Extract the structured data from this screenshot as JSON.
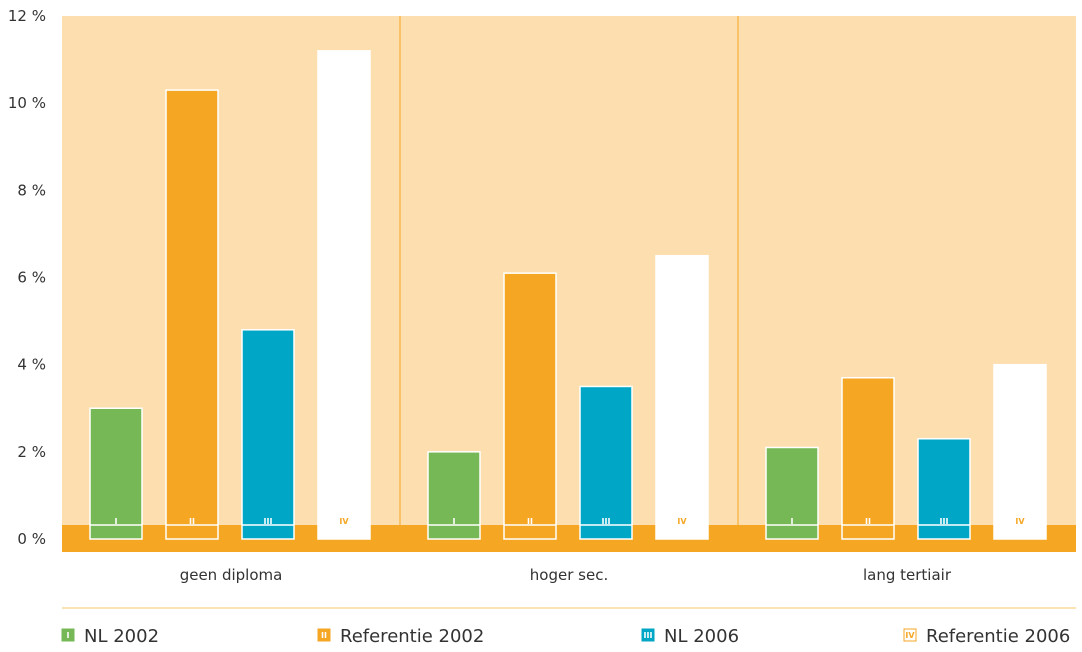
{
  "colors": {
    "plot_background": "#fddeaf",
    "baseline_band": "#f5a623",
    "divider": "#f5a623",
    "legend_rule": "#f5c96a",
    "nl2002": "#76b856",
    "ref2002": "#f5a623",
    "nl2006": "#00a6c6",
    "ref2006": "#ffffff"
  },
  "chart_data": {
    "type": "bar",
    "categories": [
      "geen diploma",
      "hoger sec.",
      "lang tertiair"
    ],
    "ylim": [
      0,
      12
    ],
    "yticks": [
      0,
      2,
      4,
      6,
      8,
      10,
      12
    ],
    "ytick_labels": [
      "0 %",
      "2 %",
      "4 %",
      "6 %",
      "8 %",
      "10 %",
      "12 %"
    ],
    "grid": false,
    "legend_position": "bottom",
    "series": [
      {
        "name": "NL 2002",
        "marker": "I",
        "color": "#76b856",
        "text_color": "#ffffff",
        "values": [
          3.0,
          2.0,
          2.1
        ]
      },
      {
        "name": "Referentie 2002",
        "marker": "II",
        "color": "#f5a623",
        "text_color": "#ffffff",
        "values": [
          10.3,
          6.1,
          3.7
        ]
      },
      {
        "name": "NL 2006",
        "marker": "III",
        "color": "#00a6c6",
        "text_color": "#ffffff",
        "values": [
          4.8,
          3.5,
          2.3
        ]
      },
      {
        "name": "Referentie 2006",
        "marker": "IV",
        "color": "#ffffff",
        "text_color": "#f5a623",
        "values": [
          11.2,
          6.5,
          4.0
        ]
      }
    ]
  }
}
